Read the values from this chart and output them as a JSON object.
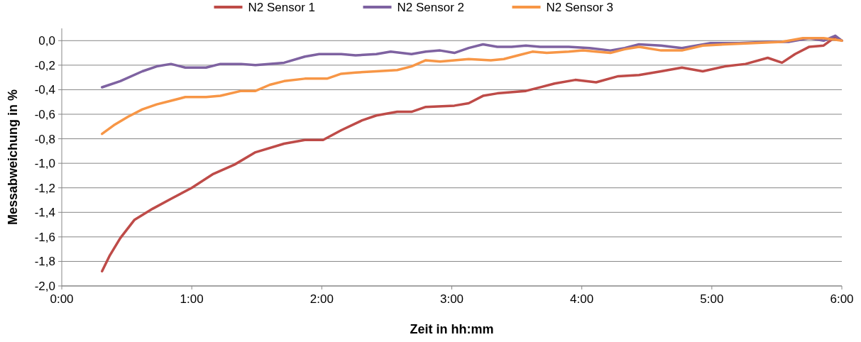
{
  "chart_data": {
    "type": "line",
    "xlabel": "Zeit in hh:mm",
    "ylabel": "Messabweichung in %",
    "xlim": [
      0,
      6
    ],
    "ylim": [
      -2,
      0.1
    ],
    "xticks": [
      {
        "value": 0,
        "label": "0:00"
      },
      {
        "value": 1,
        "label": "1:00"
      },
      {
        "value": 2,
        "label": "2:00"
      },
      {
        "value": 3,
        "label": "3:00"
      },
      {
        "value": 4,
        "label": "4:00"
      },
      {
        "value": 5,
        "label": "5:00"
      },
      {
        "value": 6,
        "label": "6:00"
      }
    ],
    "yticks": [
      {
        "value": -2,
        "label": "-2,0"
      },
      {
        "value": -1.8,
        "label": "-1,8"
      },
      {
        "value": -1.6,
        "label": "-1,6"
      },
      {
        "value": -1.4,
        "label": "-1,4"
      },
      {
        "value": -1.2,
        "label": "-1,2"
      },
      {
        "value": -1,
        "label": "-1,0"
      },
      {
        "value": -0.8,
        "label": "-0,8"
      },
      {
        "value": -0.6,
        "label": "-0,6"
      },
      {
        "value": -0.4,
        "label": "-0,4"
      },
      {
        "value": -0.2,
        "label": "-0,2"
      },
      {
        "value": 0,
        "label": "0,0"
      }
    ],
    "grid": "y",
    "legend": "top",
    "marker": "none",
    "line_style": "solid",
    "series": [
      {
        "name": "N2 Sensor 1",
        "color": "#be4b48",
        "x": [
          0.31,
          0.37,
          0.45,
          0.56,
          0.7,
          0.84,
          1.0,
          1.16,
          1.33,
          1.49,
          1.71,
          1.87,
          2.01,
          2.15,
          2.31,
          2.42,
          2.58,
          2.69,
          2.8,
          3.02,
          3.13,
          3.24,
          3.35,
          3.57,
          3.79,
          3.95,
          4.11,
          4.28,
          4.44,
          4.61,
          4.77,
          4.93,
          5.1,
          5.26,
          5.43,
          5.54,
          5.64,
          5.75,
          5.86,
          5.95,
          6.0
        ],
        "values": [
          -1.88,
          -1.75,
          -1.61,
          -1.46,
          -1.37,
          -1.29,
          -1.2,
          -1.09,
          -1.01,
          -0.91,
          -0.84,
          -0.81,
          -0.81,
          -0.73,
          -0.65,
          -0.61,
          -0.58,
          -0.58,
          -0.54,
          -0.53,
          -0.51,
          -0.45,
          -0.43,
          -0.41,
          -0.35,
          -0.32,
          -0.34,
          -0.29,
          -0.28,
          -0.25,
          -0.22,
          -0.25,
          -0.21,
          -0.19,
          -0.14,
          -0.18,
          -0.11,
          -0.05,
          -0.04,
          0.03,
          0.0
        ]
      },
      {
        "name": "N2 Sensor 2",
        "color": "#7e62a1",
        "x": [
          0.31,
          0.45,
          0.62,
          0.73,
          0.84,
          0.95,
          1.11,
          1.22,
          1.38,
          1.49,
          1.71,
          1.87,
          1.98,
          2.15,
          2.26,
          2.42,
          2.53,
          2.69,
          2.8,
          2.91,
          3.02,
          3.13,
          3.24,
          3.35,
          3.46,
          3.57,
          3.68,
          3.9,
          4.06,
          4.22,
          4.33,
          4.44,
          4.61,
          4.77,
          4.99,
          5.21,
          5.43,
          5.59,
          5.75,
          5.86,
          5.95,
          6.0
        ],
        "values": [
          -0.38,
          -0.33,
          -0.25,
          -0.21,
          -0.19,
          -0.22,
          -0.22,
          -0.19,
          -0.19,
          -0.2,
          -0.18,
          -0.13,
          -0.11,
          -0.11,
          -0.12,
          -0.11,
          -0.09,
          -0.11,
          -0.09,
          -0.08,
          -0.1,
          -0.06,
          -0.03,
          -0.05,
          -0.05,
          -0.04,
          -0.05,
          -0.05,
          -0.06,
          -0.08,
          -0.06,
          -0.03,
          -0.04,
          -0.06,
          -0.02,
          -0.02,
          -0.01,
          -0.01,
          0.02,
          0.0,
          0.04,
          0.0
        ]
      },
      {
        "name": "N2 Sensor 3",
        "color": "#f79646",
        "x": [
          0.31,
          0.4,
          0.51,
          0.62,
          0.73,
          0.84,
          0.95,
          1.11,
          1.22,
          1.38,
          1.49,
          1.6,
          1.71,
          1.87,
          2.04,
          2.15,
          2.26,
          2.42,
          2.58,
          2.69,
          2.8,
          2.91,
          3.02,
          3.13,
          3.3,
          3.4,
          3.51,
          3.62,
          3.73,
          3.9,
          4.01,
          4.11,
          4.22,
          4.33,
          4.44,
          4.61,
          4.77,
          4.93,
          5.1,
          5.32,
          5.54,
          5.7,
          5.86,
          6.0
        ],
        "values": [
          -0.76,
          -0.69,
          -0.62,
          -0.56,
          -0.52,
          -0.49,
          -0.46,
          -0.46,
          -0.45,
          -0.41,
          -0.41,
          -0.36,
          -0.33,
          -0.31,
          -0.31,
          -0.27,
          -0.26,
          -0.25,
          -0.24,
          -0.21,
          -0.16,
          -0.17,
          -0.16,
          -0.15,
          -0.16,
          -0.15,
          -0.12,
          -0.09,
          -0.1,
          -0.09,
          -0.08,
          -0.09,
          -0.1,
          -0.07,
          -0.05,
          -0.08,
          -0.08,
          -0.04,
          -0.03,
          -0.02,
          -0.01,
          0.02,
          0.02,
          0.0
        ]
      }
    ]
  }
}
